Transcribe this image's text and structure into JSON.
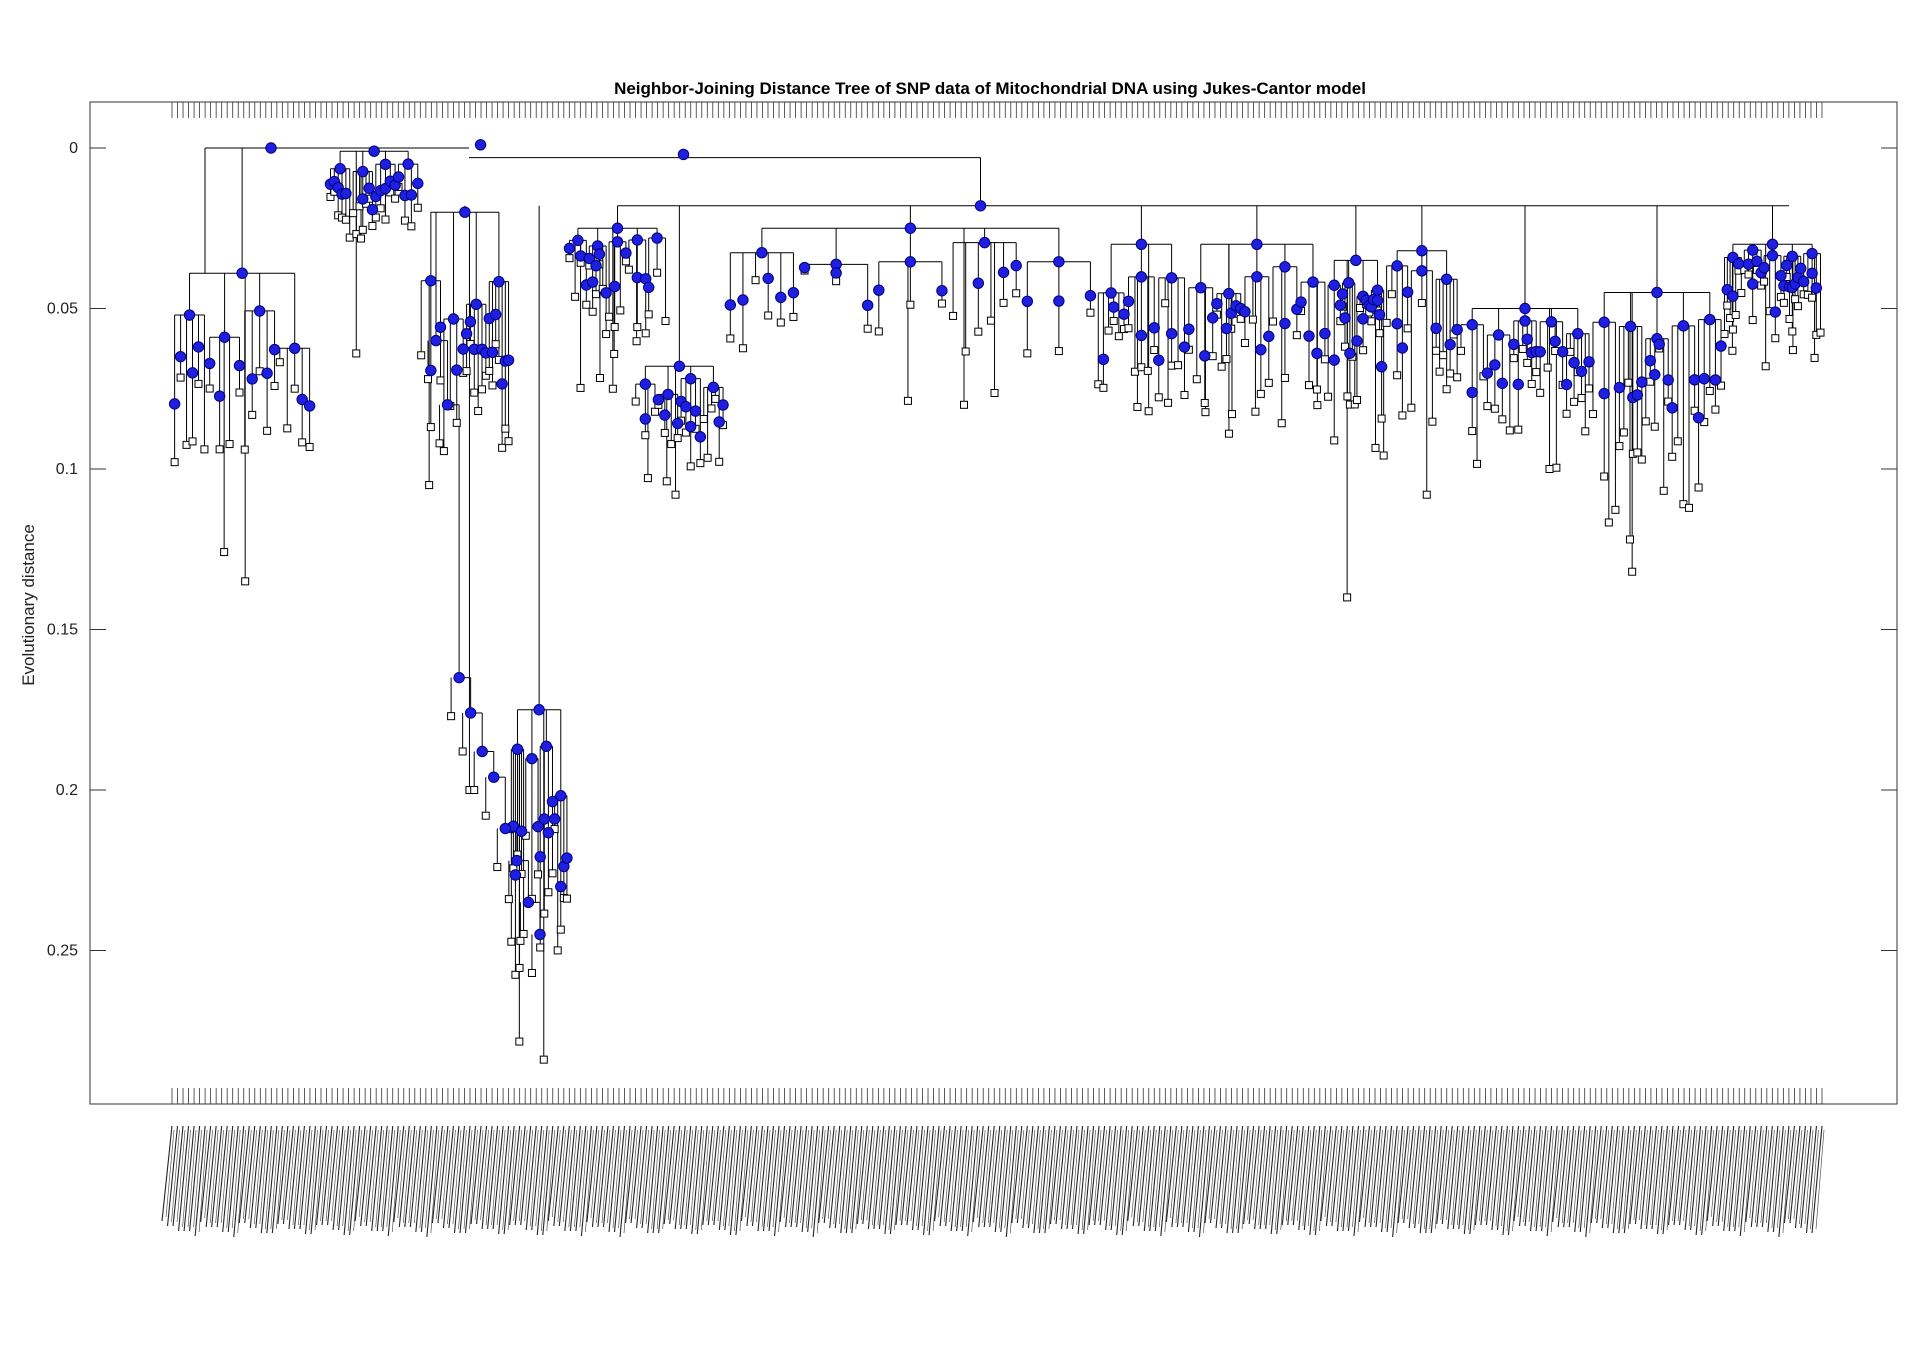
{
  "chart_data": {
    "type": "dendrogram",
    "title": "Neighbor-Joining Distance Tree of SNP data of Mitochondrial DNA using Jukes-Cantor model",
    "xlabel": "",
    "ylabel": "Evolutionary distance",
    "ylim": [
      -0.015,
      0.297
    ],
    "y_direction": "reversed",
    "y_ticks": [
      0,
      0.05,
      0.1,
      0.15,
      0.2,
      0.25
    ],
    "y_tick_labels": [
      "0",
      "0.05",
      "0.1",
      "0.15",
      "0.2",
      "0.25"
    ],
    "grid": false,
    "branch_node_color": "#1f1fe0",
    "branch_node_edge_color": "#000080",
    "leaf_node_color": "#ffffff",
    "line_color": "#000000",
    "leaf_count": 300,
    "root": {
      "distance": 0.0
    },
    "clades": [
      {
        "x_range": [
          0.0,
          0.085
        ],
        "join": 0.039,
        "leaf_min": 0.066,
        "leaf_max": 0.098,
        "deep_leaf": 0.135
      },
      {
        "x_range": [
          0.095,
          0.15
        ],
        "join": 0.001,
        "leaf_min": 0.01,
        "leaf_max": 0.028,
        "deep_leaf": 0.064
      },
      {
        "x_range": [
          0.15,
          0.205
        ],
        "join": 0.02,
        "leaf_min": 0.06,
        "leaf_max": 0.095,
        "deep_leaf": 0.2
      },
      {
        "x_range": [
          0.205,
          0.24
        ],
        "join": 0.175,
        "leaf_min": 0.21,
        "leaf_max": 0.26,
        "deep_leaf": 0.284
      },
      {
        "x_range": [
          0.24,
          0.3
        ],
        "join": 0.025,
        "leaf_min": 0.033,
        "leaf_max": 0.06,
        "deep_leaf": 0.075
      },
      {
        "x_range": [
          0.28,
          0.335
        ],
        "join": 0.068,
        "leaf_min": 0.078,
        "leaf_max": 0.1,
        "deep_leaf": 0.108
      },
      {
        "x_range": [
          0.335,
          0.56
        ],
        "join": 0.025,
        "leaf_min": 0.038,
        "leaf_max": 0.07,
        "deep_leaf": 0.08
      },
      {
        "x_range": [
          0.56,
          0.615
        ],
        "join": 0.03,
        "leaf_min": 0.048,
        "leaf_max": 0.078,
        "deep_leaf": 0.082
      },
      {
        "x_range": [
          0.615,
          0.7
        ],
        "join": 0.03,
        "leaf_min": 0.05,
        "leaf_max": 0.08,
        "deep_leaf": 0.089
      },
      {
        "x_range": [
          0.7,
          0.735
        ],
        "join": 0.035,
        "leaf_min": 0.048,
        "leaf_max": 0.102,
        "deep_leaf": 0.14
      },
      {
        "x_range": [
          0.735,
          0.78
        ],
        "join": 0.032,
        "leaf_min": 0.045,
        "leaf_max": 0.09,
        "deep_leaf": 0.108
      },
      {
        "x_range": [
          0.78,
          0.86
        ],
        "join": 0.05,
        "leaf_min": 0.062,
        "leaf_max": 0.09,
        "deep_leaf": 0.1
      },
      {
        "x_range": [
          0.86,
          0.94
        ],
        "join": 0.045,
        "leaf_min": 0.062,
        "leaf_max": 0.115,
        "deep_leaf": 0.132
      },
      {
        "x_range": [
          0.94,
          1.0
        ],
        "join": 0.03,
        "leaf_min": 0.036,
        "leaf_max": 0.06,
        "deep_leaf": 0.068
      }
    ]
  }
}
